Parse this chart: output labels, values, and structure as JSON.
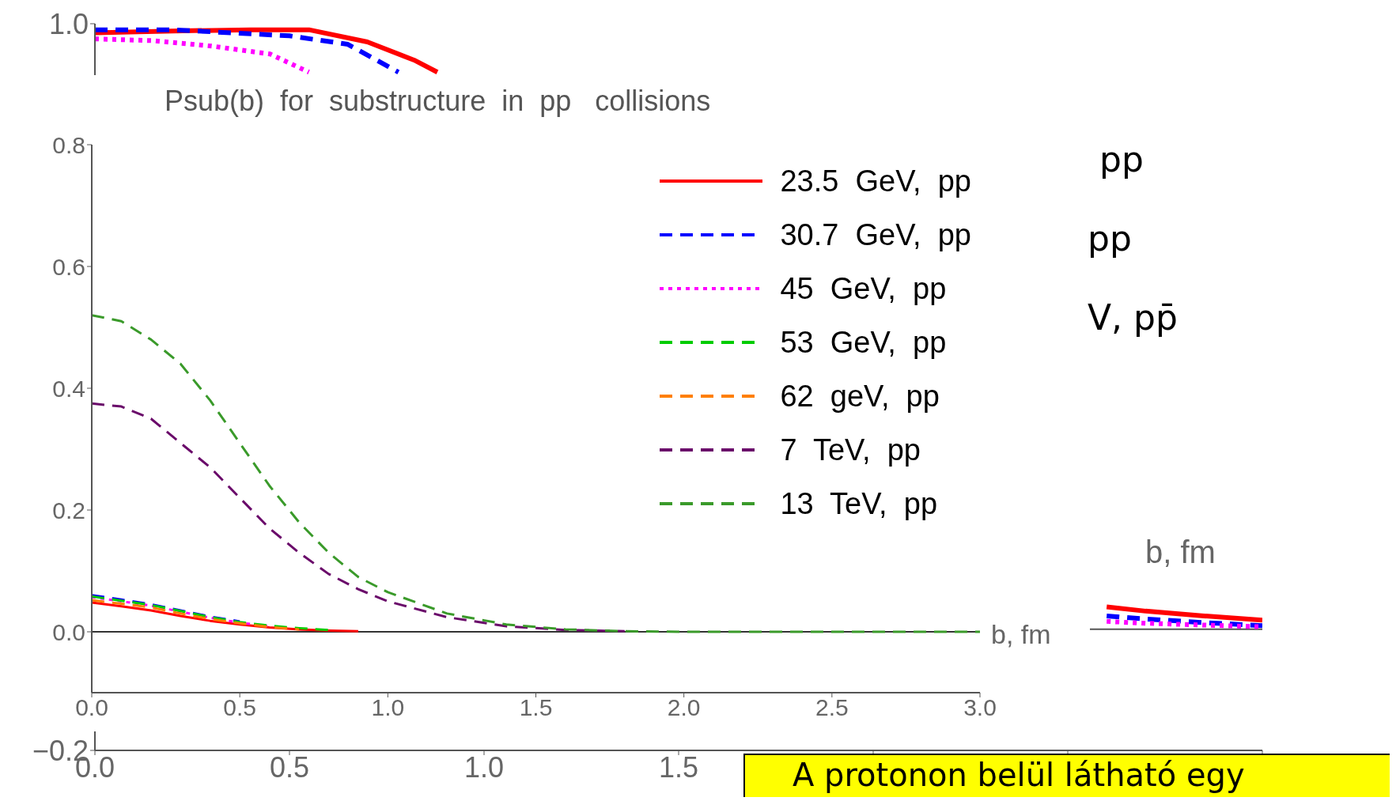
{
  "chart_data": [
    {
      "type": "line",
      "xlabel": "b, fm",
      "xlim": [
        0,
        3
      ],
      "ylim": [
        -0.2,
        1.0
      ],
      "xticks": [
        {
          "value": 0,
          "label": "0.0"
        },
        {
          "value": 0.5,
          "label": "0.5"
        },
        {
          "value": 1,
          "label": "1.0"
        },
        {
          "value": 1.5,
          "label": "1.5"
        },
        {
          "value": 2,
          "label": null
        },
        {
          "value": 2.5,
          "label": null
        },
        {
          "value": 3,
          "label": null
        }
      ],
      "yticks": [
        {
          "value": -0.2,
          "label": "−0.2"
        },
        {
          "value": 0,
          "label": null
        },
        {
          "value": 0.2,
          "label": null
        },
        {
          "value": 0.4,
          "label": null
        },
        {
          "value": 0.6,
          "label": null
        },
        {
          "value": 0.8,
          "label": null
        },
        {
          "value": 1,
          "label": "1.0"
        }
      ],
      "ref_lines": [
        {
          "axis": "y",
          "value": 0,
          "color": "#555555"
        }
      ],
      "series": [
        {
          "color": "#ff0000",
          "line_style": "solid",
          "x": [
            0,
            0.2,
            0.4,
            0.55,
            0.7,
            0.82,
            0.88,
            1.0,
            2.5,
            2.6,
            2.7,
            2.85,
            3.0
          ],
          "values": [
            0.985,
            0.988,
            0.99,
            0.99,
            0.97,
            0.94,
            0.92,
            null,
            null,
            0.037,
            0.03,
            0.022,
            0.015
          ]
        },
        {
          "color": "#0000ff",
          "line_style": "dashed",
          "x": [
            0,
            0.2,
            0.35,
            0.5,
            0.65,
            0.78,
            1.0,
            2.5,
            2.6,
            2.7,
            2.85,
            3.0
          ],
          "values": [
            0.99,
            0.99,
            0.985,
            0.98,
            0.966,
            0.92,
            null,
            null,
            0.022,
            0.017,
            0.011,
            0.006
          ]
        },
        {
          "color": "#ff00ff",
          "line_style": "dotted",
          "x": [
            0,
            0.15,
            0.3,
            0.45,
            0.55,
            1.0,
            2.5,
            2.6,
            2.7,
            2.85,
            3.0
          ],
          "values": [
            0.975,
            0.972,
            0.963,
            0.95,
            0.92,
            null,
            null,
            0.013,
            0.01,
            0.007,
            0.004
          ]
        }
      ],
      "annotations": [
        "pp",
        "pp",
        "V, pp̄",
        "A protonon belül látható egy"
      ]
    },
    {
      "type": "line",
      "title": "Psub(b)  for  substructure  in  pp   collisions",
      "xlabel": "b, fm",
      "xlim": [
        0,
        3
      ],
      "ylim": [
        -0.1,
        0.8
      ],
      "xticks": [
        {
          "value": 0,
          "label": "0.0"
        },
        {
          "value": 0.5,
          "label": "0.5"
        },
        {
          "value": 1,
          "label": "1.0"
        },
        {
          "value": 1.5,
          "label": "1.5"
        },
        {
          "value": 2,
          "label": "2.0"
        },
        {
          "value": 2.5,
          "label": "2.5"
        },
        {
          "value": 3,
          "label": "3.0"
        }
      ],
      "yticks": [
        {
          "value": 0,
          "label": "0.0"
        },
        {
          "value": 0.2,
          "label": "0.2"
        },
        {
          "value": 0.4,
          "label": "0.4"
        },
        {
          "value": 0.6,
          "label": "0.6"
        },
        {
          "value": 0.8,
          "label": "0.8"
        }
      ],
      "ref_lines": [
        {
          "axis": "y",
          "value": 0,
          "color": "#333333"
        }
      ],
      "legend": "top right",
      "x": [
        0,
        0.1,
        0.2,
        0.3,
        0.4,
        0.5,
        0.6,
        0.7,
        0.8,
        0.9,
        1.0,
        1.2,
        1.4,
        1.6,
        1.8,
        2.0,
        2.5,
        3.0
      ],
      "series": [
        {
          "name": "23.5  GeV,  pp",
          "color": "#ff0000",
          "line_style": "solid",
          "values": [
            0.048,
            0.042,
            0.035,
            0.026,
            0.018,
            0.012,
            0.007,
            0.004,
            0.002,
            0.001,
            null,
            null,
            null,
            null,
            null,
            null,
            null,
            null
          ]
        },
        {
          "name": "30.7  GeV,  pp",
          "color": "#0000ff",
          "line_style": "dashed",
          "values": [
            0.06,
            0.053,
            0.045,
            0.035,
            0.025,
            0.017,
            null,
            null,
            null,
            null,
            null,
            null,
            null,
            null,
            null,
            null,
            null,
            null
          ]
        },
        {
          "name": "45  GeV,  pp",
          "color": "#ff00ff",
          "line_style": "dotted",
          "values": [
            0.057,
            0.05,
            0.043,
            0.033,
            0.023,
            0.015,
            0.009,
            null,
            null,
            null,
            null,
            null,
            null,
            null,
            null,
            null,
            null,
            null
          ]
        },
        {
          "name": "53  GeV,  pp",
          "color": "#00cc00",
          "line_style": "dashed",
          "values": [
            0.058,
            0.051,
            0.044,
            0.034,
            0.024,
            0.016,
            0.01,
            0.006,
            0.003,
            null,
            null,
            null,
            null,
            null,
            null,
            null,
            null,
            null
          ]
        },
        {
          "name": "62  geV,  pp",
          "color": "#ff7f00",
          "line_style": "dashed",
          "values": [
            0.052,
            0.046,
            0.04,
            0.03,
            0.021,
            0.014,
            0.008,
            0.004,
            null,
            null,
            null,
            null,
            null,
            null,
            null,
            null,
            null,
            null
          ]
        },
        {
          "name": "7  TeV,  pp",
          "color": "#6a0a6a",
          "line_style": "dashed",
          "values": [
            0.375,
            0.37,
            0.35,
            0.31,
            0.27,
            0.22,
            0.17,
            0.13,
            0.095,
            0.07,
            0.05,
            0.024,
            0.009,
            0.003,
            0.001,
            null,
            null,
            null
          ]
        },
        {
          "name": "13  TeV,  pp",
          "color": "#3a9a2a",
          "line_style": "dashed",
          "values": [
            0.52,
            0.51,
            0.48,
            0.44,
            0.38,
            0.31,
            0.24,
            0.18,
            0.13,
            0.09,
            0.065,
            0.03,
            0.012,
            0.004,
            0.001,
            0,
            0,
            0
          ]
        }
      ]
    }
  ]
}
